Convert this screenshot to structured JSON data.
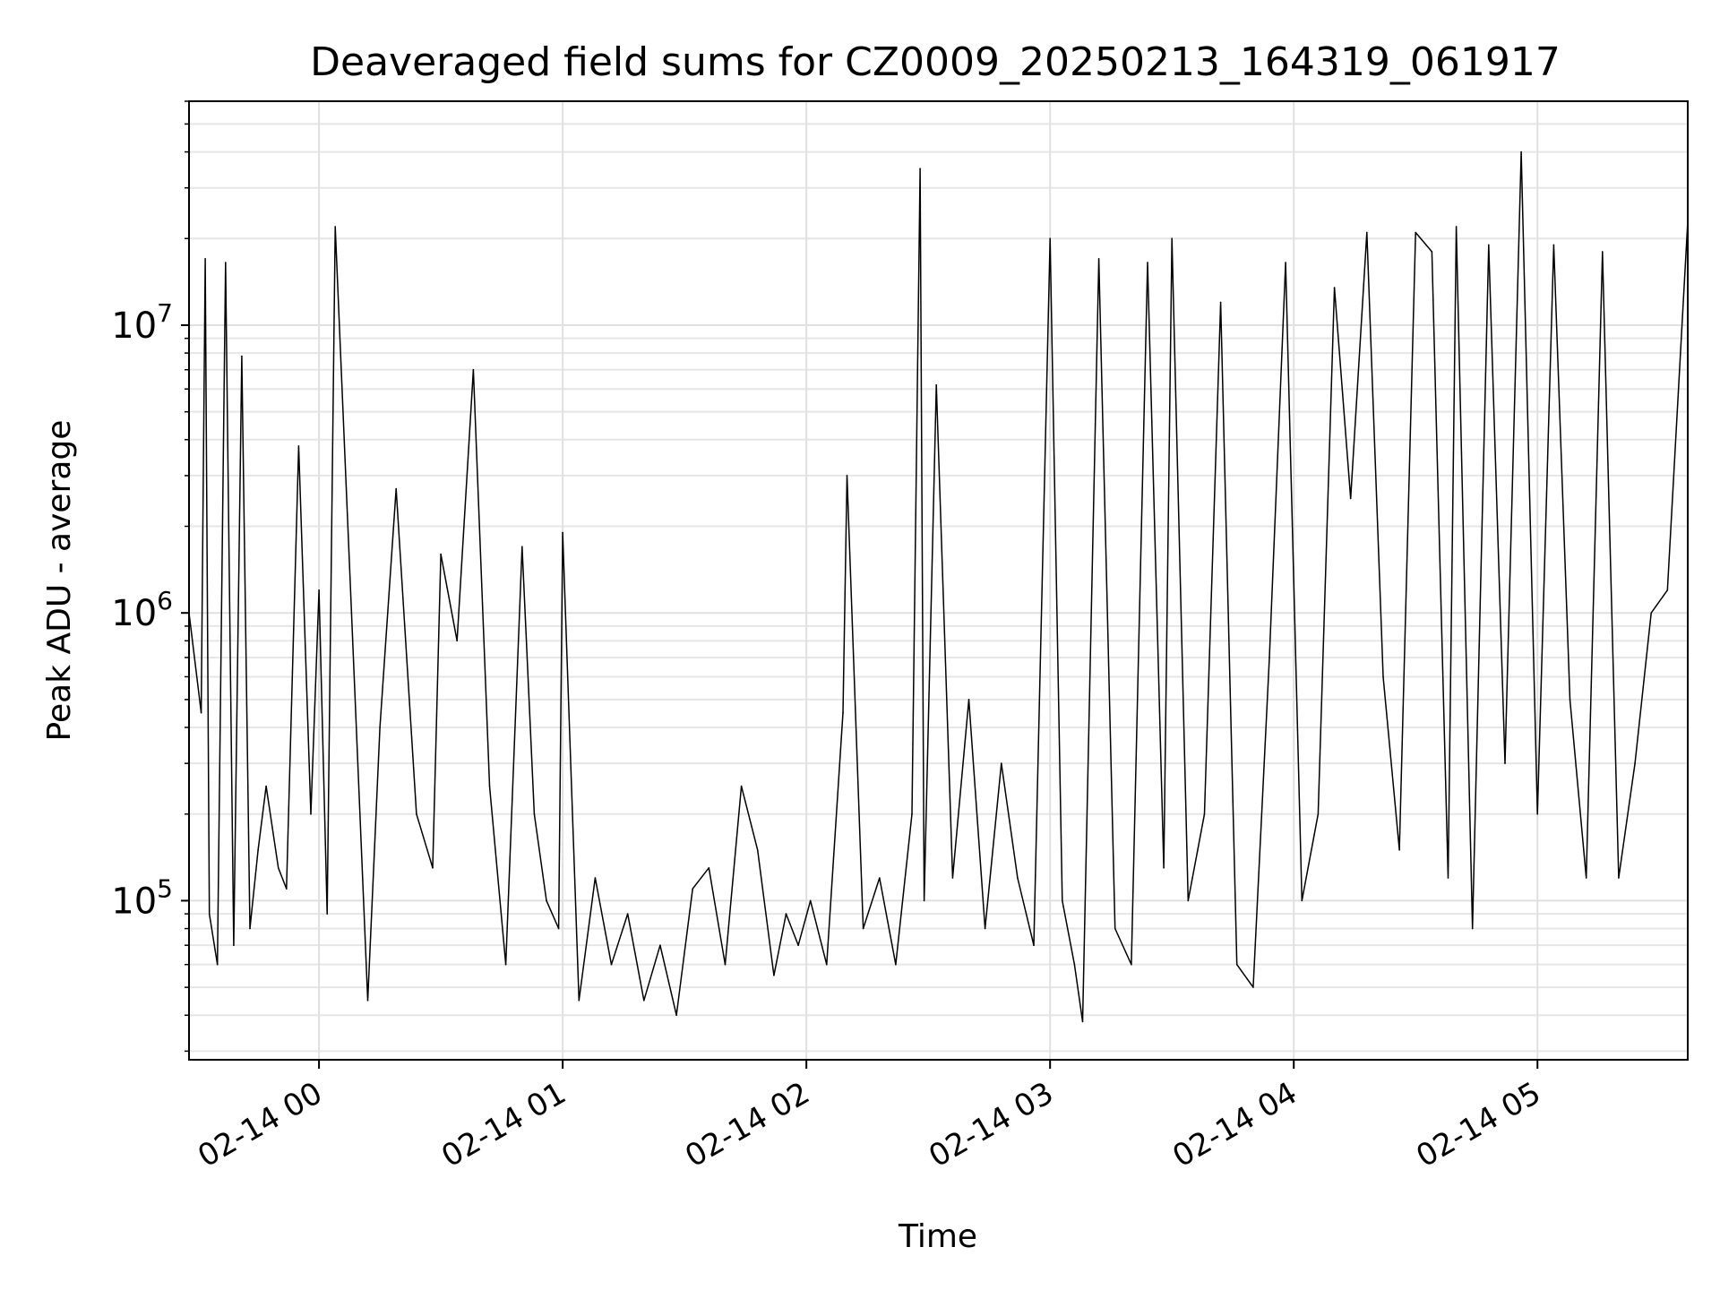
{
  "chart_data": {
    "type": "line",
    "title": "Deaveraged field sums for CZ0009_20250213_164319_061917",
    "xlabel": "Time",
    "ylabel": "Peak ADU - average",
    "y_scale": "log",
    "ylim": [
      28000,
      60000000
    ],
    "xlim": [
      "2025-02-13T23:28",
      "2025-02-14T05:37"
    ],
    "x_ticks": [
      "2025-02-14T00:00",
      "2025-02-14T01:00",
      "2025-02-14T02:00",
      "2025-02-14T03:00",
      "2025-02-14T04:00",
      "2025-02-14T05:00"
    ],
    "x_tick_labels": [
      "02-14 00",
      "02-14 01",
      "02-14 02",
      "02-14 03",
      "02-14 04",
      "02-14 05"
    ],
    "y_ticks": [
      100000,
      1000000,
      10000000
    ],
    "y_tick_labels": [
      {
        "base": "10",
        "exp": "5"
      },
      {
        "base": "10",
        "exp": "6"
      },
      {
        "base": "10",
        "exp": "7"
      }
    ],
    "grid": true,
    "line_color": "#000000",
    "series": [
      {
        "x": [
          "2025-02-13T23:28",
          "2025-02-13T23:31",
          "2025-02-13T23:32",
          "2025-02-13T23:33",
          "2025-02-13T23:35",
          "2025-02-13T23:37",
          "2025-02-13T23:39",
          "2025-02-13T23:41",
          "2025-02-13T23:43",
          "2025-02-13T23:45",
          "2025-02-13T23:47",
          "2025-02-13T23:50",
          "2025-02-13T23:52",
          "2025-02-13T23:55",
          "2025-02-13T23:58",
          "2025-02-14T00:00",
          "2025-02-14T00:02",
          "2025-02-14T00:04",
          "2025-02-14T00:08",
          "2025-02-14T00:12",
          "2025-02-14T00:15",
          "2025-02-14T00:19",
          "2025-02-14T00:24",
          "2025-02-14T00:28",
          "2025-02-14T00:30",
          "2025-02-14T00:34",
          "2025-02-14T00:38",
          "2025-02-14T00:42",
          "2025-02-14T00:46",
          "2025-02-14T00:50",
          "2025-02-14T00:53",
          "2025-02-14T00:56",
          "2025-02-14T00:59",
          "2025-02-14T01:00",
          "2025-02-14T01:04",
          "2025-02-14T01:08",
          "2025-02-14T01:12",
          "2025-02-14T01:16",
          "2025-02-14T01:20",
          "2025-02-14T01:24",
          "2025-02-14T01:28",
          "2025-02-14T01:32",
          "2025-02-14T01:36",
          "2025-02-14T01:40",
          "2025-02-14T01:44",
          "2025-02-14T01:48",
          "2025-02-14T01:52",
          "2025-02-14T01:55",
          "2025-02-14T01:58",
          "2025-02-14T02:01",
          "2025-02-14T02:05",
          "2025-02-14T02:09",
          "2025-02-14T02:10",
          "2025-02-14T02:14",
          "2025-02-14T02:18",
          "2025-02-14T02:22",
          "2025-02-14T02:26",
          "2025-02-14T02:28",
          "2025-02-14T02:29",
          "2025-02-14T02:32",
          "2025-02-14T02:36",
          "2025-02-14T02:40",
          "2025-02-14T02:44",
          "2025-02-14T02:48",
          "2025-02-14T02:52",
          "2025-02-14T02:56",
          "2025-02-14T03:00",
          "2025-02-14T03:03",
          "2025-02-14T03:06",
          "2025-02-14T03:08",
          "2025-02-14T03:12",
          "2025-02-14T03:16",
          "2025-02-14T03:20",
          "2025-02-14T03:24",
          "2025-02-14T03:28",
          "2025-02-14T03:30",
          "2025-02-14T03:34",
          "2025-02-14T03:38",
          "2025-02-14T03:42",
          "2025-02-14T03:46",
          "2025-02-14T03:50",
          "2025-02-14T03:54",
          "2025-02-14T03:58",
          "2025-02-14T04:02",
          "2025-02-14T04:06",
          "2025-02-14T04:10",
          "2025-02-14T04:14",
          "2025-02-14T04:18",
          "2025-02-14T04:22",
          "2025-02-14T04:26",
          "2025-02-14T04:30",
          "2025-02-14T04:34",
          "2025-02-14T04:38",
          "2025-02-14T04:40",
          "2025-02-14T04:44",
          "2025-02-14T04:48",
          "2025-02-14T04:52",
          "2025-02-14T04:56",
          "2025-02-14T05:00",
          "2025-02-14T05:04",
          "2025-02-14T05:08",
          "2025-02-14T05:12",
          "2025-02-14T05:16",
          "2025-02-14T05:20",
          "2025-02-14T05:24",
          "2025-02-14T05:28",
          "2025-02-14T05:32",
          "2025-02-14T05:37"
        ],
        "y": [
          1000000,
          450000,
          17000000,
          90000,
          60000,
          16500000,
          70000,
          7800000,
          80000,
          150000,
          250000,
          130000,
          110000,
          3800000,
          200000,
          1200000,
          90000,
          22000000,
          1000000,
          45000,
          400000,
          2700000,
          200000,
          130000,
          1600000,
          800000,
          7000000,
          250000,
          60000,
          1700000,
          200000,
          100000,
          80000,
          1900000,
          45000,
          120000,
          60000,
          90000,
          45000,
          70000,
          40000,
          110000,
          130000,
          60000,
          250000,
          150000,
          55000,
          90000,
          70000,
          100000,
          60000,
          450000,
          3000000,
          80000,
          120000,
          60000,
          200000,
          35000000,
          100000,
          6200000,
          120000,
          500000,
          80000,
          300000,
          120000,
          70000,
          20000000,
          100000,
          60000,
          38000,
          17000000,
          80000,
          60000,
          16500000,
          130000,
          20000000,
          100000,
          200000,
          12000000,
          60000,
          50000,
          700000,
          16500000,
          100000,
          200000,
          13500000,
          2500000,
          21000000,
          600000,
          150000,
          21000000,
          18000000,
          120000,
          22000000,
          80000,
          19000000,
          300000,
          40000000,
          200000,
          19000000,
          500000,
          120000,
          18000000,
          120000,
          300000,
          1000000,
          1200000,
          23000000
        ]
      }
    ]
  }
}
